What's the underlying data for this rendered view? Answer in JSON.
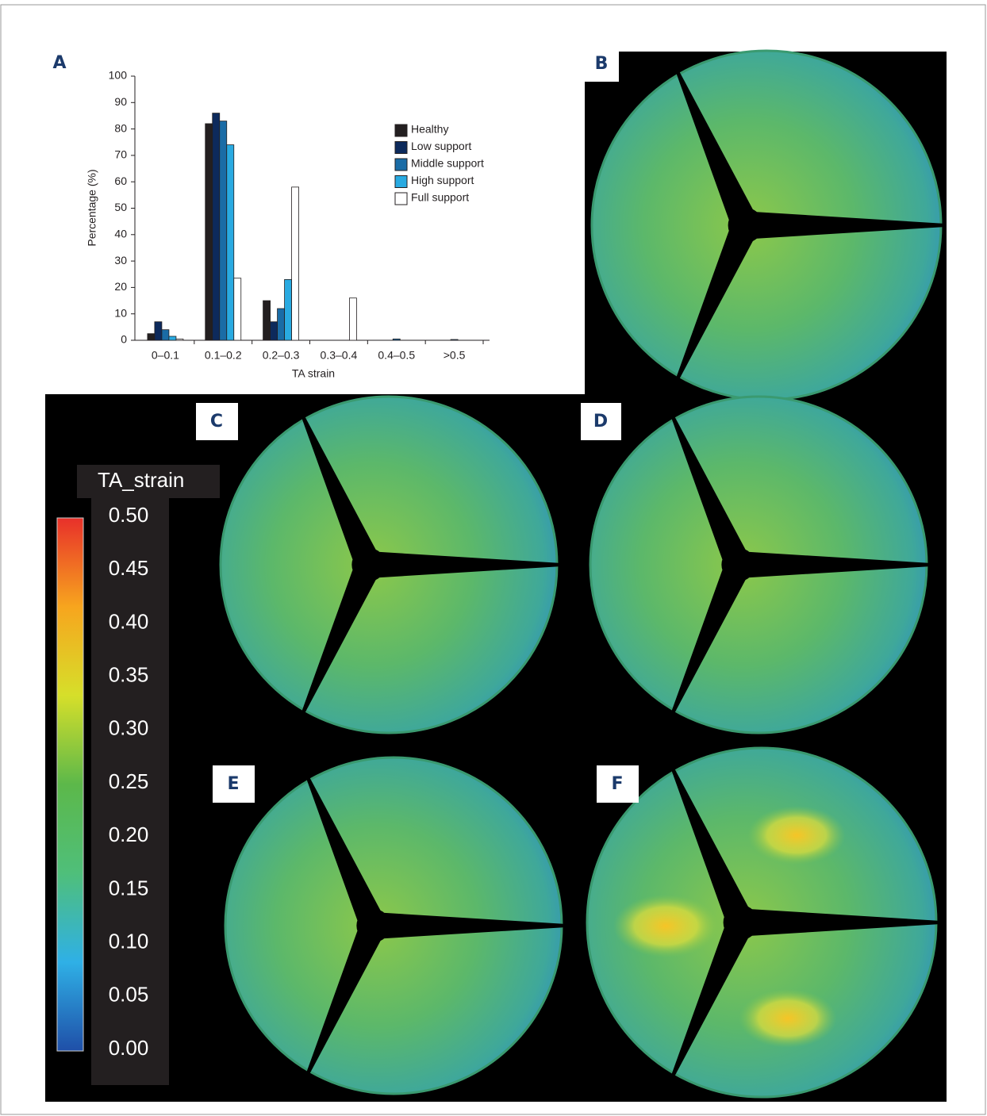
{
  "panel_labels": [
    "A",
    "B",
    "C",
    "D",
    "E",
    "F"
  ],
  "chart_data": [
    {
      "type": "bar",
      "xlabel": "TA strain",
      "ylabel": "Percentage (%)",
      "categories": [
        "0–0.1",
        "0.1–0.2",
        "0.2–0.3",
        "0.3–0.4",
        "0.4–0.5",
        ">0.5"
      ],
      "ylim": [
        0,
        100
      ],
      "yticks": [
        0,
        10,
        20,
        30,
        40,
        50,
        60,
        70,
        80,
        90,
        100
      ],
      "legend": "upper right",
      "series": [
        {
          "name": "Healthy",
          "color": "#231f20",
          "values": [
            2.5,
            82,
            15,
            0,
            0,
            0
          ]
        },
        {
          "name": "Low support",
          "color": "#0d2a5c",
          "values": [
            7,
            86,
            7,
            0,
            0,
            0
          ]
        },
        {
          "name": "Middle support",
          "color": "#1a6ca6",
          "values": [
            4,
            83,
            12,
            0,
            0.5,
            0.3
          ]
        },
        {
          "name": "High support",
          "color": "#29aae1",
          "values": [
            1.5,
            74,
            23,
            0,
            0,
            0
          ]
        },
        {
          "name": "Full support",
          "color": "#ffffff",
          "values": [
            0.5,
            23.5,
            58,
            16,
            0,
            0
          ]
        }
      ]
    },
    {
      "type": "colorbar",
      "title": "TA_strain",
      "clim": [
        0,
        0.5
      ],
      "colors": [
        "#1f4fa8",
        "#2fb0e6",
        "#4fbf7a",
        "#5cb84a",
        "#d6df2a",
        "#f7a51e",
        "#e8302a"
      ],
      "ticks": [
        {
          "value": 0.5,
          "label": "0.50"
        },
        {
          "value": 0.45,
          "label": "0.45"
        },
        {
          "value": 0.4,
          "label": "0.40"
        },
        {
          "value": 0.35,
          "label": "0.35"
        },
        {
          "value": 0.3,
          "label": "0.30"
        },
        {
          "value": 0.25,
          "label": "0.25"
        },
        {
          "value": 0.2,
          "label": "0.20"
        },
        {
          "value": 0.15,
          "label": "0.15"
        },
        {
          "value": 0.1,
          "label": "0.10"
        },
        {
          "value": 0.05,
          "label": "0.05"
        },
        {
          "value": 0,
          "label": "0.00"
        }
      ]
    }
  ]
}
